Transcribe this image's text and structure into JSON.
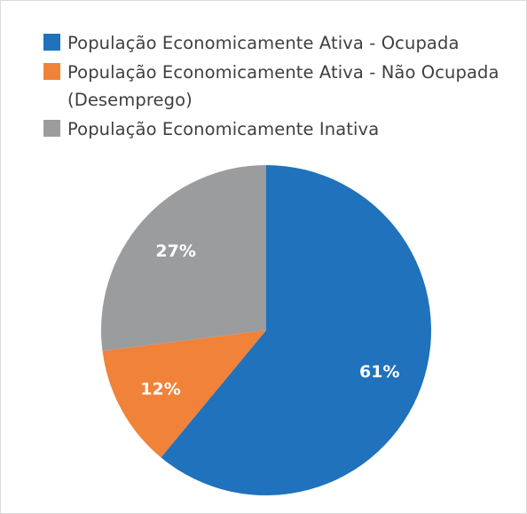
{
  "chart_data": {
    "type": "pie",
    "title": "",
    "categories": [
      "População Economicamente Ativa - Ocupada",
      "População Economicamente Ativa - Não Ocupada (Desemprego)",
      "População Economicamente Inativa"
    ],
    "values": [
      61,
      12,
      27
    ],
    "labels": [
      "61%",
      "12%",
      "27%"
    ],
    "colors": [
      "#1f72bb",
      "#f0823a",
      "#9a9c9e"
    ],
    "legend_position": "top",
    "start_angle": "12 o'clock, clockwise"
  },
  "legend": {
    "items": [
      {
        "label": "População Economicamente Ativa - Ocupada",
        "color": "#1f72bb"
      },
      {
        "label": "População Economicamente Ativa - Não Ocupada (Desemprego)",
        "color": "#f0823a"
      },
      {
        "label": "População Economicamente Inativa",
        "color": "#9a9c9e"
      }
    ]
  }
}
